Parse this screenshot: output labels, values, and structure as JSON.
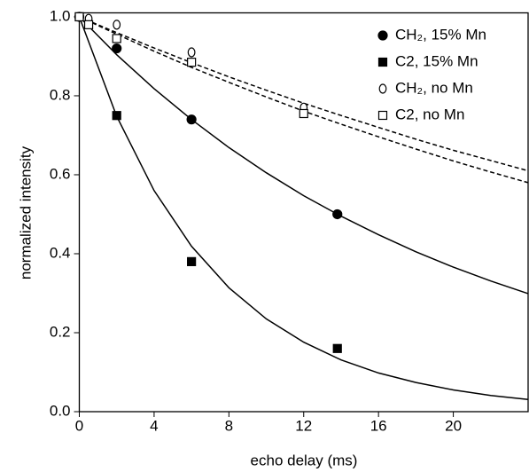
{
  "chart_data": {
    "type": "scatter",
    "x_label": "echo delay (ms)",
    "y_label": "normalized intensity",
    "xlim": [
      0,
      24
    ],
    "ylim": [
      0,
      1.01
    ],
    "xticks": [
      0,
      4,
      8,
      12,
      16,
      20
    ],
    "yticks": [
      {
        "value": 0,
        "label": "0.0"
      },
      0.2,
      0.4,
      0.6,
      0.8,
      {
        "value": 1,
        "label": "1.0"
      }
    ],
    "legend": "upper right",
    "series": [
      {
        "name": "CH₂, 15% Mn",
        "marker": "circle",
        "filled": true,
        "color": "#000000",
        "x": [
          0,
          2,
          6,
          13.8
        ],
        "values": [
          1.0,
          0.92,
          0.74,
          0.5
        ]
      },
      {
        "name": "C2, 15% Mn",
        "marker": "square",
        "filled": true,
        "color": "#000000",
        "x": [
          0,
          2,
          6,
          13.8
        ],
        "values": [
          1.0,
          0.75,
          0.38,
          0.16
        ]
      },
      {
        "name": "CH₂, no Mn",
        "marker": "circle",
        "filled": false,
        "color": "#000000",
        "x": [
          0,
          0.5,
          2,
          6,
          12
        ],
        "values": [
          1.0,
          0.995,
          0.98,
          0.91,
          0.77
        ]
      },
      {
        "name": "C2, no Mn",
        "marker": "square",
        "filled": false,
        "color": "#000000",
        "x": [
          0,
          0.5,
          2,
          6,
          12
        ],
        "values": [
          1.0,
          0.98,
          0.945,
          0.885,
          0.755
        ]
      }
    ],
    "fits": [
      {
        "dashed": false,
        "x": [
          0,
          2,
          4,
          6,
          8,
          10,
          12,
          14,
          16,
          18,
          20,
          22,
          24
        ],
        "values": [
          1,
          0.904,
          0.818,
          0.74,
          0.669,
          0.605,
          0.547,
          0.495,
          0.448,
          0.405,
          0.366,
          0.331,
          0.299
        ]
      },
      {
        "dashed": false,
        "x": [
          0,
          2,
          4,
          6,
          8,
          10,
          12,
          14,
          16,
          18,
          20,
          22,
          24
        ],
        "values": [
          1,
          0.748,
          0.56,
          0.419,
          0.314,
          0.235,
          0.176,
          0.131,
          0.098,
          0.074,
          0.055,
          0.041,
          0.031
        ]
      },
      {
        "dashed": true,
        "x": [
          0,
          2,
          4,
          6,
          8,
          10,
          12,
          14,
          16,
          18,
          20,
          22,
          24
        ],
        "values": [
          1,
          0.96,
          0.921,
          0.884,
          0.848,
          0.814,
          0.781,
          0.75,
          0.72,
          0.69,
          0.662,
          0.636,
          0.61
        ]
      },
      {
        "dashed": true,
        "x": [
          0,
          2,
          4,
          6,
          8,
          10,
          12,
          14,
          16,
          18,
          20,
          22,
          24
        ],
        "values": [
          1,
          0.956,
          0.913,
          0.872,
          0.834,
          0.797,
          0.761,
          0.728,
          0.696,
          0.665,
          0.635,
          0.607,
          0.58
        ]
      }
    ]
  }
}
